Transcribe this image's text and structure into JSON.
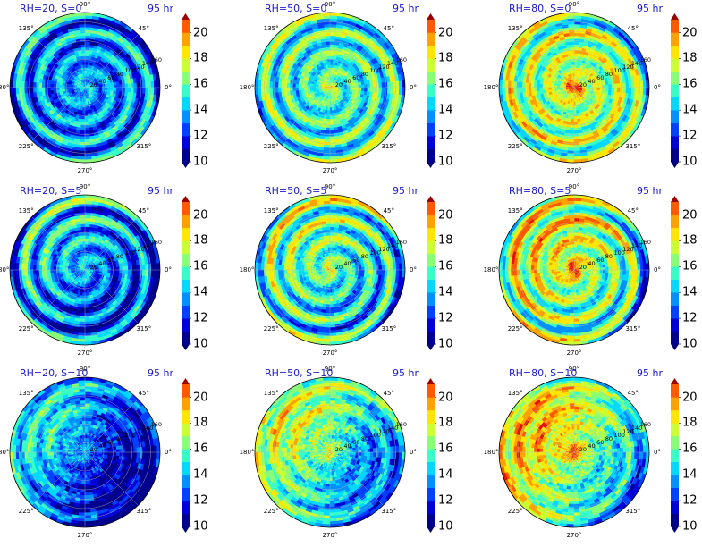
{
  "figure": {
    "time_label": "95 hr",
    "angle_labels": [
      "90°",
      "45°",
      "0°",
      "315°",
      "270°",
      "225°",
      "180°",
      "135°"
    ],
    "radial_labels": [
      "20",
      "40",
      "60",
      "80",
      "100",
      "120",
      "140",
      "160"
    ],
    "colorbar_ticks": [
      "10",
      "12",
      "14",
      "16",
      "18",
      "20"
    ]
  },
  "chart_data": {
    "type": "heatmap",
    "projection": "polar",
    "theta_ticks_deg": [
      0,
      45,
      90,
      135,
      180,
      225,
      270,
      315
    ],
    "r_ticks": [
      20,
      40,
      60,
      80,
      100,
      120,
      140,
      160
    ],
    "colorbar": {
      "min": 10,
      "max": 21,
      "ticks": [
        10,
        12,
        14,
        16,
        18,
        20
      ],
      "extend": "both",
      "colormap": "jet"
    },
    "panels": [
      {
        "title": "RH=20, S=0",
        "rh": 20,
        "s": 0,
        "time": "95 hr"
      },
      {
        "title": "RH=50, S=0",
        "rh": 50,
        "s": 0,
        "time": "95 hr"
      },
      {
        "title": "RH=80, S=0",
        "rh": 80,
        "s": 0,
        "time": "95 hr"
      },
      {
        "title": "RH=20, S=5",
        "rh": 20,
        "s": 5,
        "time": "95 hr"
      },
      {
        "title": "RH=50, S=5",
        "rh": 50,
        "s": 5,
        "time": "95 hr"
      },
      {
        "title": "RH=80, S=5",
        "rh": 80,
        "s": 5,
        "time": "95 hr"
      },
      {
        "title": "RH=20, S=10",
        "rh": 20,
        "s": 10,
        "time": "95 hr"
      },
      {
        "title": "RH=50, S=10",
        "rh": 50,
        "s": 10,
        "time": "95 hr"
      },
      {
        "title": "RH=80, S=10",
        "rh": 80,
        "s": 10,
        "time": "95 hr"
      }
    ]
  }
}
